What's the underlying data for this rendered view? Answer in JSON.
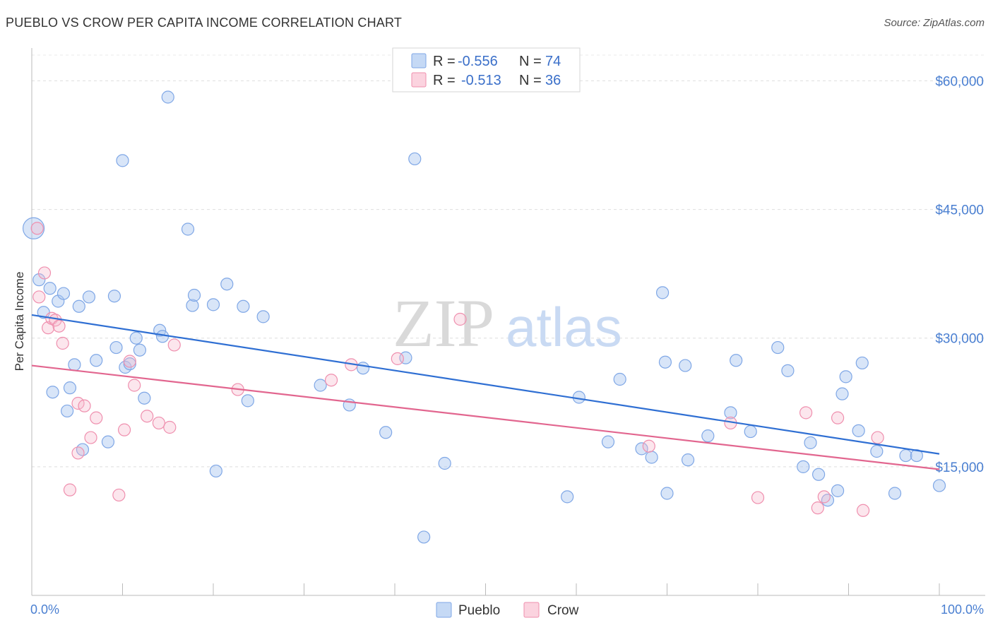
{
  "header": {
    "title": "PUEBLO VS CROW PER CAPITA INCOME CORRELATION CHART",
    "source": "Source: ZipAtlas.com"
  },
  "legend": {
    "rows": [
      {
        "r_label": "R =",
        "r_value": "-0.556",
        "n_label": "N =",
        "n_value": "74",
        "color": "#a9c6f0"
      },
      {
        "r_label": "R =",
        "r_value": "-0.513",
        "n_label": "N =",
        "n_value": "36",
        "color": "#f6b8cb"
      }
    ]
  },
  "watermark": {
    "zip": "ZIP",
    "atlas": "atlas"
  },
  "colors": {
    "pueblo": "#7fa7e6",
    "crow": "#ef8fae",
    "pueblo_line": "#2f6fd3",
    "crow_line": "#e2668f"
  },
  "chart_data": {
    "type": "scatter",
    "title": "PUEBLO VS CROW PER CAPITA INCOME CORRELATION CHART",
    "xlabel": "",
    "ylabel": "Per Capita Income",
    "xlim": [
      0,
      100
    ],
    "ylim": [
      0,
      63000
    ],
    "x_tick_labels": [
      "0.0%",
      "100.0%"
    ],
    "y_ticks": [
      15000,
      30000,
      45000,
      60000
    ],
    "y_tick_labels": [
      "$15,000",
      "$30,000",
      "$45,000",
      "$60,000"
    ],
    "grid": true,
    "legend_position": "bottom-center",
    "series": [
      {
        "name": "Pueblo",
        "trend": [
          [
            0,
            32700
          ],
          [
            100,
            16500
          ]
        ],
        "points": [
          [
            0.2,
            42800
          ],
          [
            0.8,
            36800
          ],
          [
            1.3,
            33000
          ],
          [
            2.0,
            35800
          ],
          [
            2.3,
            23700
          ],
          [
            2.9,
            34300
          ],
          [
            3.5,
            35200
          ],
          [
            3.9,
            21500
          ],
          [
            4.2,
            24200
          ],
          [
            4.7,
            26900
          ],
          [
            5.2,
            33700
          ],
          [
            5.6,
            17000
          ],
          [
            6.3,
            34800
          ],
          [
            7.1,
            27400
          ],
          [
            8.4,
            17900
          ],
          [
            9.1,
            34900
          ],
          [
            9.3,
            28900
          ],
          [
            10.0,
            50700
          ],
          [
            10.3,
            26600
          ],
          [
            10.8,
            27000
          ],
          [
            11.5,
            30000
          ],
          [
            11.9,
            28600
          ],
          [
            12.4,
            23000
          ],
          [
            14.1,
            30900
          ],
          [
            14.4,
            30200
          ],
          [
            15.0,
            58100
          ],
          [
            17.2,
            42700
          ],
          [
            17.7,
            33800
          ],
          [
            17.9,
            35000
          ],
          [
            20.0,
            33900
          ],
          [
            20.3,
            14500
          ],
          [
            21.5,
            36300
          ],
          [
            23.3,
            33700
          ],
          [
            23.8,
            22700
          ],
          [
            25.5,
            32500
          ],
          [
            31.8,
            24500
          ],
          [
            35.0,
            22200
          ],
          [
            36.5,
            26500
          ],
          [
            39.0,
            19000
          ],
          [
            41.2,
            27700
          ],
          [
            42.2,
            50900
          ],
          [
            43.2,
            6800
          ],
          [
            45.5,
            15400
          ],
          [
            59.0,
            11500
          ],
          [
            60.3,
            23100
          ],
          [
            63.5,
            17900
          ],
          [
            64.8,
            25200
          ],
          [
            67.2,
            17100
          ],
          [
            68.3,
            16100
          ],
          [
            69.5,
            35300
          ],
          [
            70.0,
            11900
          ],
          [
            69.8,
            27200
          ],
          [
            72.0,
            26800
          ],
          [
            72.3,
            15800
          ],
          [
            74.5,
            18600
          ],
          [
            77.0,
            21300
          ],
          [
            77.6,
            27400
          ],
          [
            79.2,
            19100
          ],
          [
            82.2,
            28900
          ],
          [
            83.3,
            26200
          ],
          [
            85.0,
            15000
          ],
          [
            85.8,
            17800
          ],
          [
            86.7,
            14100
          ],
          [
            87.7,
            11100
          ],
          [
            88.8,
            12200
          ],
          [
            89.3,
            23500
          ],
          [
            89.7,
            25500
          ],
          [
            91.1,
            19200
          ],
          [
            91.5,
            27100
          ],
          [
            93.1,
            16800
          ],
          [
            95.1,
            11900
          ],
          [
            96.3,
            16300
          ],
          [
            97.5,
            16300
          ],
          [
            100.0,
            12800
          ]
        ]
      },
      {
        "name": "Crow",
        "trend": [
          [
            0,
            26800
          ],
          [
            100,
            14700
          ]
        ],
        "points": [
          [
            0.6,
            42800
          ],
          [
            0.8,
            34800
          ],
          [
            1.4,
            37600
          ],
          [
            1.8,
            31200
          ],
          [
            2.2,
            32300
          ],
          [
            2.6,
            32100
          ],
          [
            3.0,
            31400
          ],
          [
            3.4,
            29400
          ],
          [
            4.2,
            12300
          ],
          [
            5.1,
            16600
          ],
          [
            5.1,
            22400
          ],
          [
            5.8,
            22100
          ],
          [
            6.5,
            18400
          ],
          [
            7.1,
            20700
          ],
          [
            9.6,
            11700
          ],
          [
            10.2,
            19300
          ],
          [
            10.8,
            27300
          ],
          [
            11.3,
            24500
          ],
          [
            12.7,
            20900
          ],
          [
            14.0,
            20100
          ],
          [
            15.2,
            19600
          ],
          [
            15.7,
            29200
          ],
          [
            22.7,
            24000
          ],
          [
            33.0,
            25100
          ],
          [
            35.2,
            26900
          ],
          [
            40.3,
            27600
          ],
          [
            47.2,
            32200
          ],
          [
            68.0,
            17400
          ],
          [
            77.0,
            20100
          ],
          [
            80.0,
            11400
          ],
          [
            85.3,
            21300
          ],
          [
            86.6,
            10200
          ],
          [
            87.3,
            11500
          ],
          [
            88.8,
            20700
          ],
          [
            91.6,
            9900
          ],
          [
            93.2,
            18400
          ]
        ]
      }
    ]
  }
}
